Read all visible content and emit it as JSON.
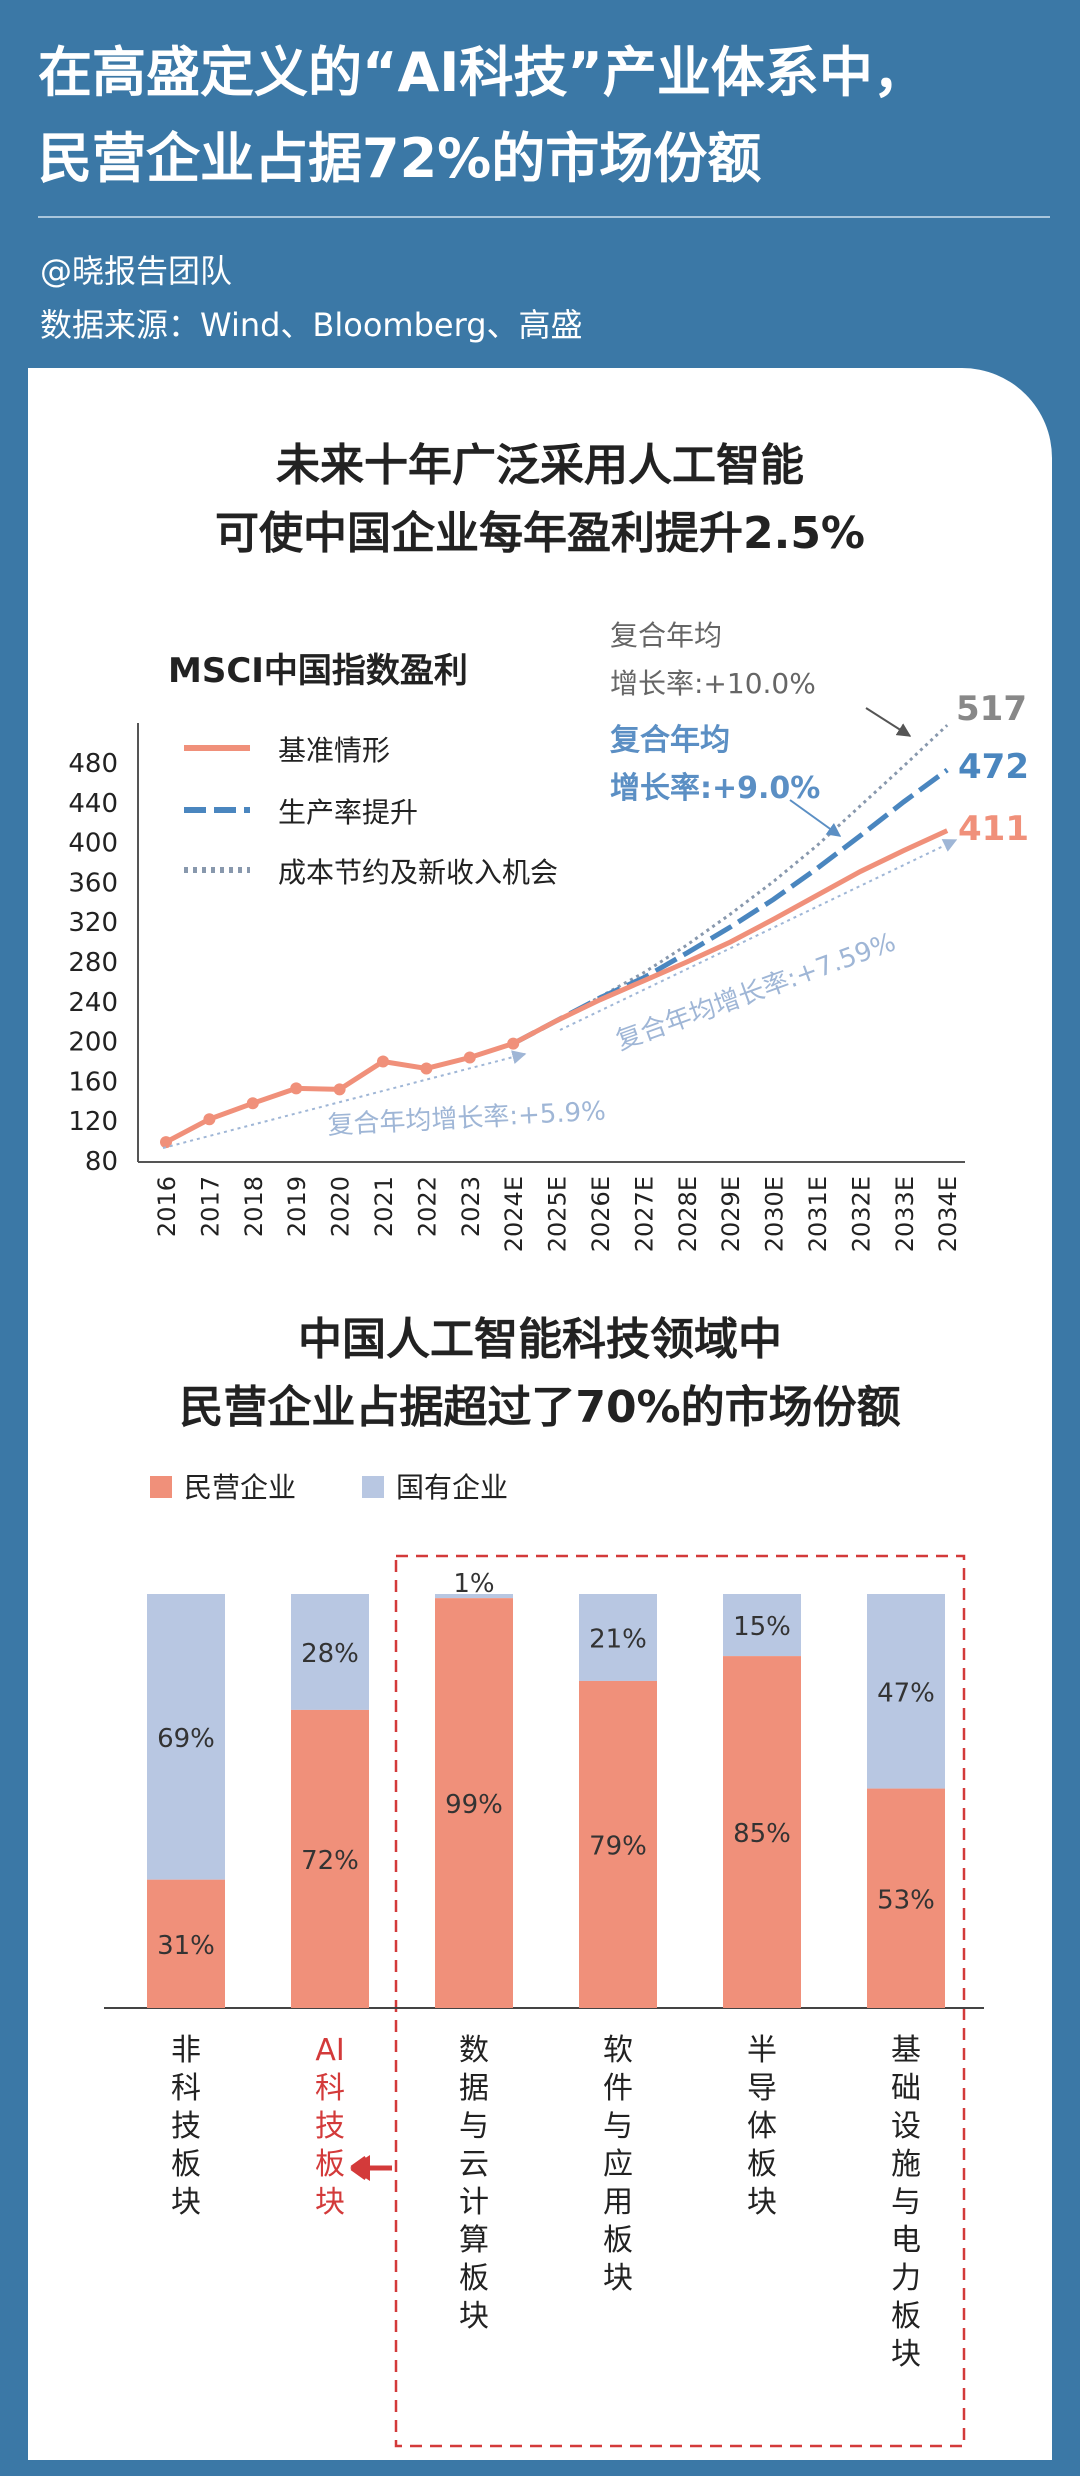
{
  "header": {
    "title_line1": "在高盛定义的“AI科技”产业体系中，",
    "title_line2": "民营企业占据72%的市场份额",
    "author": "@晓报告团队",
    "source": "数据来源：Wind、Bloomberg、高盛"
  },
  "colors": {
    "header_bg": "#3b78a6",
    "salmon": "#f0907a",
    "blue_dash": "#4a86bf",
    "dotted": "#8898ad",
    "light_blue": "#b8c7e2",
    "highlight_red": "#d33a3a",
    "callout_gray": "#666666",
    "callout_blue": "#5b8fc4"
  },
  "chart_data": [
    {
      "type": "line",
      "title": "未来十年广泛采用人工智能\n可使中国企业每年盈利提升2.5%",
      "subtitle": "MSCI中国指数盈利",
      "x": [
        "2016",
        "2017",
        "2018",
        "2019",
        "2020",
        "2021",
        "2022",
        "2023",
        "2024E",
        "2025E",
        "2026E",
        "2027E",
        "2028E",
        "2029E",
        "2030E",
        "2031E",
        "2032E",
        "2033E",
        "2034E"
      ],
      "ylim": [
        80,
        480
      ],
      "yticks": [
        80,
        120,
        160,
        200,
        240,
        280,
        320,
        360,
        400,
        440,
        480
      ],
      "grid": false,
      "legend_position": "top-left",
      "series": [
        {
          "name": "基准情形",
          "style": "solid",
          "values": [
            98,
            121,
            137,
            152,
            151,
            179,
            172,
            183,
            197,
            220,
            241,
            260,
            279,
            299,
            322,
            346,
            370,
            391,
            411
          ]
        },
        {
          "name": "生产率提升",
          "style": "dashed",
          "values": [
            null,
            null,
            null,
            null,
            null,
            null,
            null,
            null,
            197,
            220,
            243,
            263,
            288,
            314,
            342,
            373,
            406,
            440,
            472
          ]
        },
        {
          "name": "成本节约及新收入机会",
          "style": "dotted",
          "values": [
            null,
            null,
            null,
            null,
            null,
            null,
            null,
            null,
            197,
            220,
            244,
            268,
            296,
            327,
            360,
            396,
            436,
            476,
            517
          ]
        }
      ],
      "end_labels": [
        "517",
        "472",
        "411"
      ],
      "annotations": [
        {
          "text": "复合年均\n增长率:+10.0%",
          "color": "gray"
        },
        {
          "text": "复合年均\n增长率:+9.0%",
          "color": "blue"
        },
        {
          "text": "复合年均增长率:+7.59%",
          "color": "light-blue"
        },
        {
          "text": "复合年均增长率:+5.9%",
          "color": "light-blue"
        }
      ]
    },
    {
      "type": "bar",
      "stacked": true,
      "title": "中国人工智能科技领域中\n民营企业占据超过了70%的市场份额",
      "categories": [
        "非科技板块",
        "AI科技板块",
        "数据与云计算板块",
        "软件与应用板块",
        "半导体板块",
        "基础设施与电力板块"
      ],
      "highlight_category": "AI科技板块",
      "legend_position": "top-left",
      "ylim": [
        0,
        100
      ],
      "series": [
        {
          "name": "民营企业",
          "values": [
            31,
            72,
            99,
            79,
            85,
            53
          ]
        },
        {
          "name": "国有企业",
          "values": [
            69,
            28,
            1,
            21,
            15,
            47
          ]
        }
      ],
      "bar_labels_private": [
        "31%",
        "72%",
        "99%",
        "79%",
        "85%",
        "53%"
      ],
      "bar_labels_state": [
        "69%",
        "28%",
        "1%",
        "21%",
        "15%",
        "47%"
      ]
    }
  ]
}
